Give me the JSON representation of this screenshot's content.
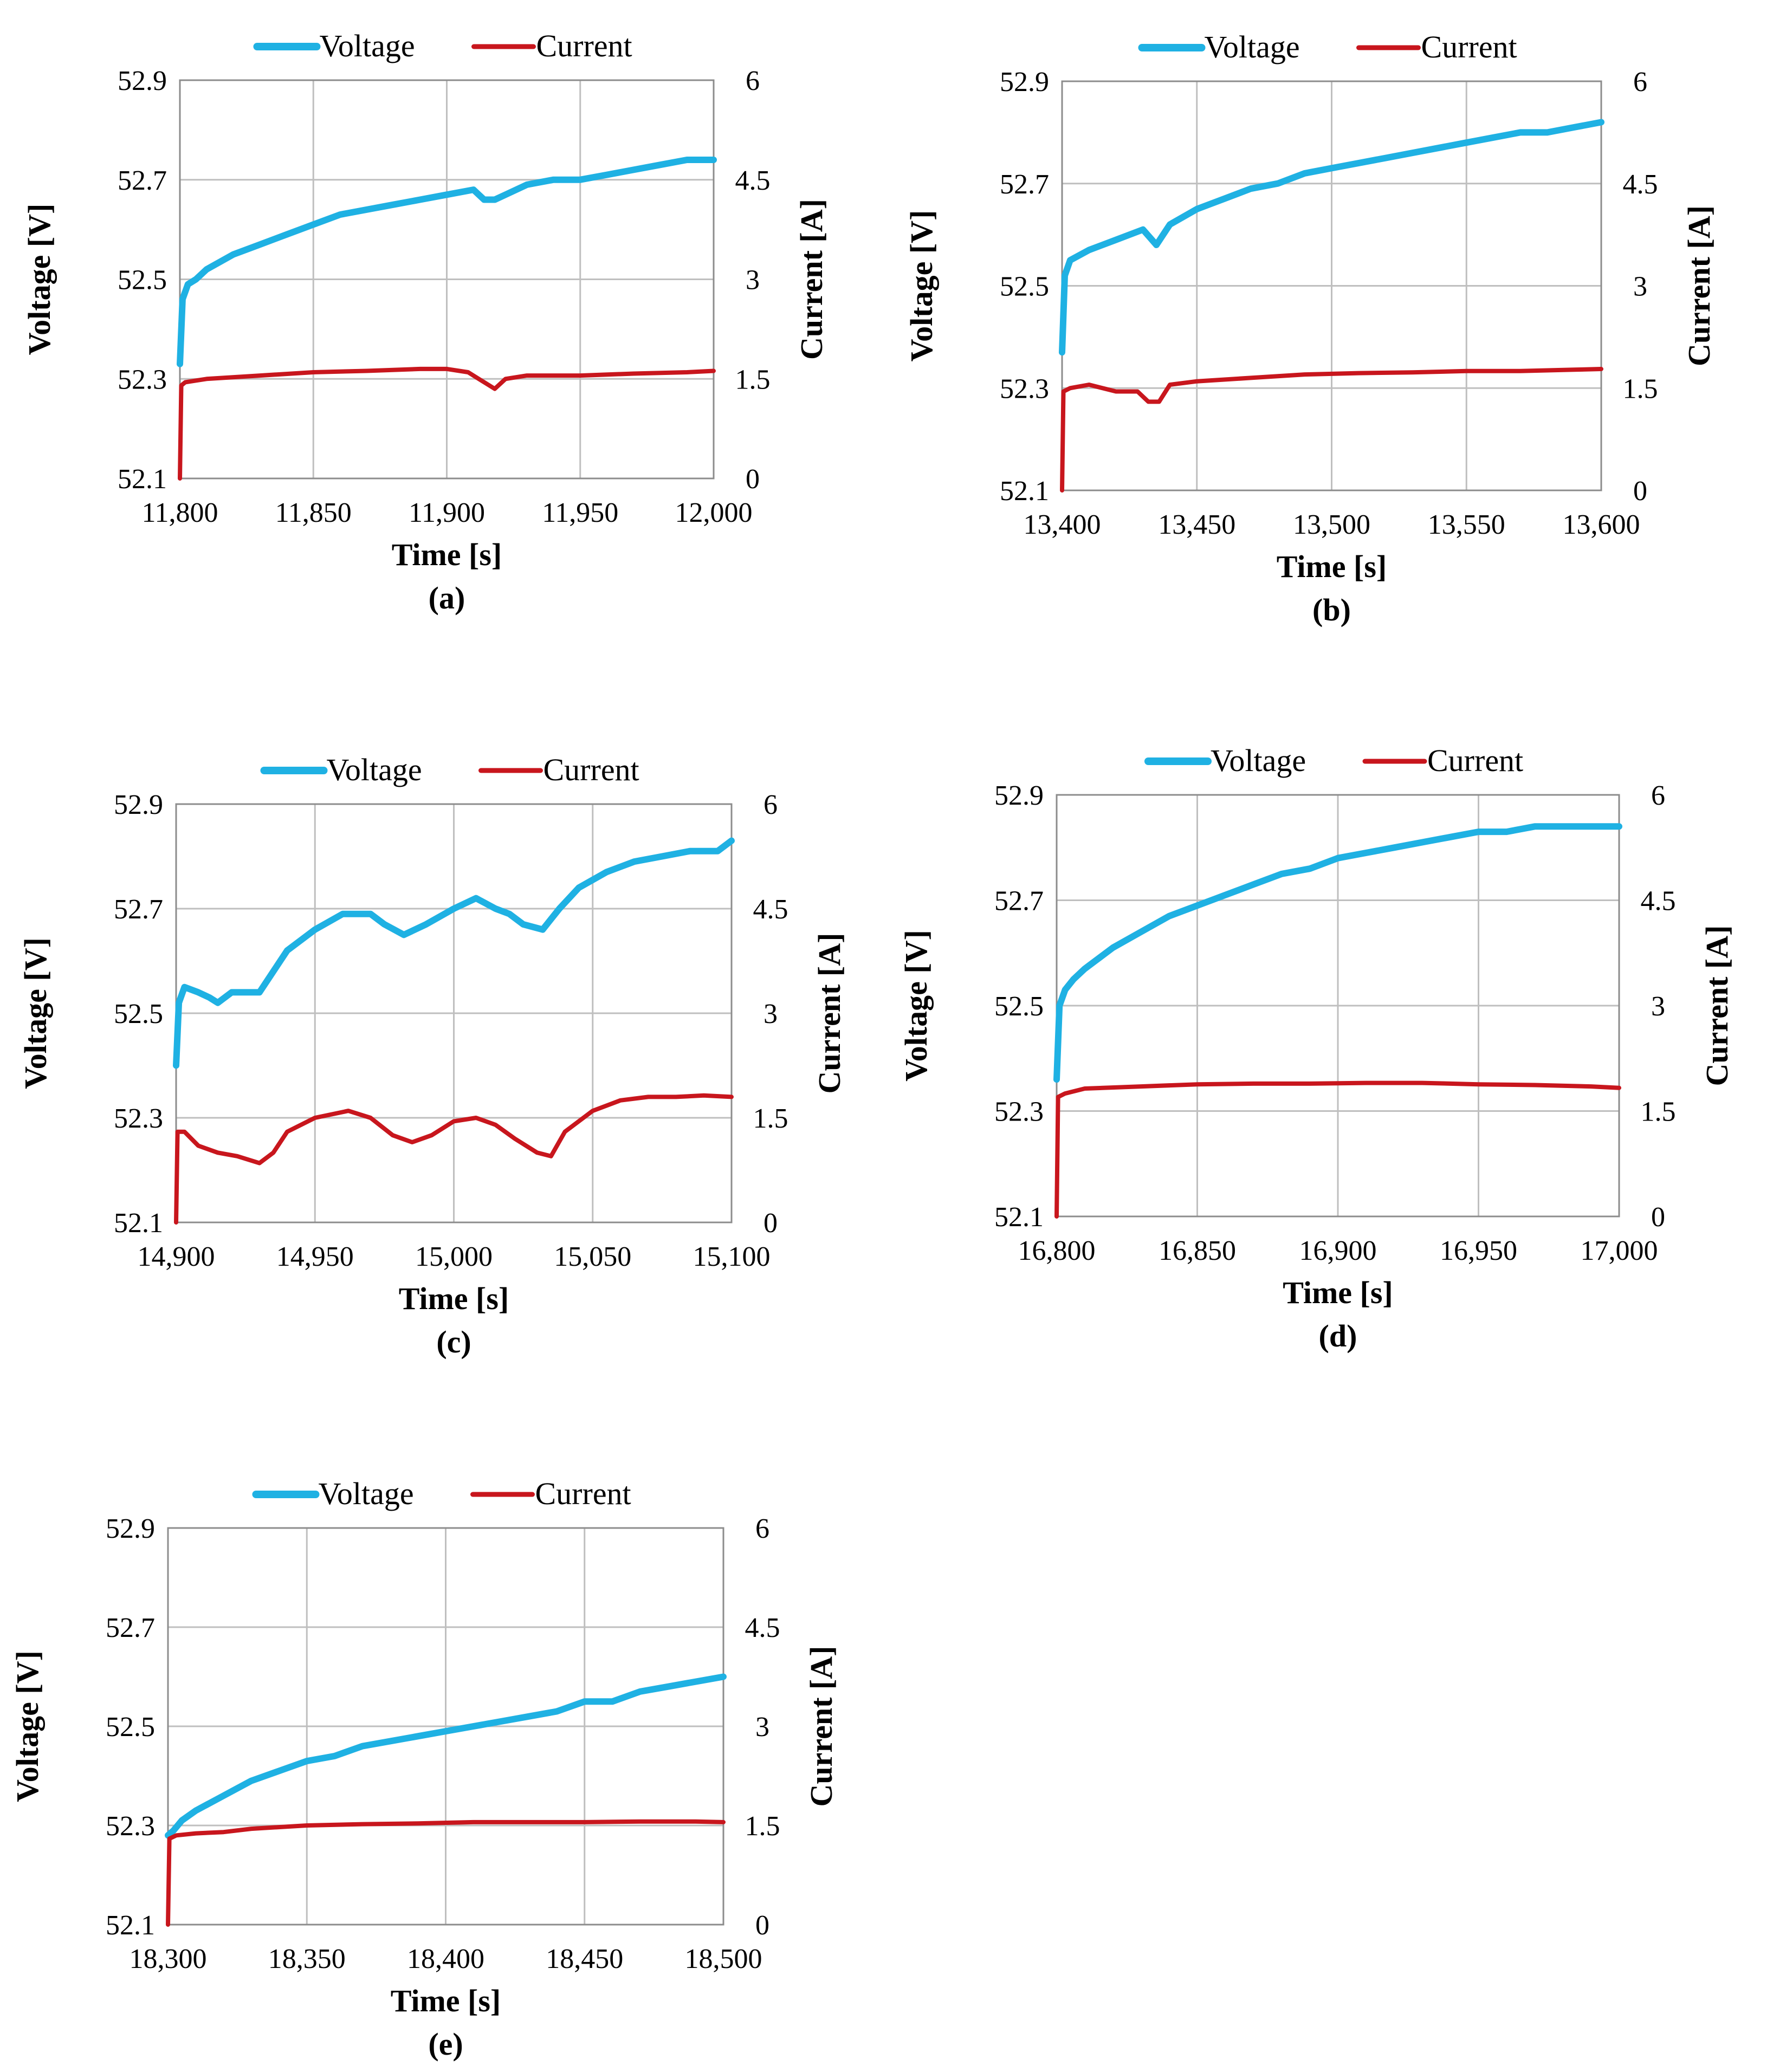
{
  "colors": {
    "voltage": "#1fb1e3",
    "current": "#c8161d",
    "grid": "#bfbfbf",
    "frame": "#8c8c8c"
  },
  "chart_data": [
    {
      "panel": "(a)",
      "type": "line",
      "xlabel": "Time [s]",
      "ylabel": "Voltage [V]",
      "y2label": "Current [A]",
      "xlim": [
        11800,
        12000
      ],
      "ylim": [
        52.1,
        52.9
      ],
      "y2lim": [
        0,
        6
      ],
      "xticks": [
        "11,800",
        "11,850",
        "11,900",
        "11,950",
        "12,000"
      ],
      "yticks": [
        "52.1",
        "52.3",
        "52.5",
        "52.7",
        "52.9"
      ],
      "y2ticks": [
        "0",
        "1.5",
        "3",
        "4.5",
        "6"
      ],
      "series": [
        {
          "name": "Voltage",
          "axis": "left",
          "x": [
            11800,
            11801,
            11803,
            11806,
            11810,
            11820,
            11830,
            11840,
            11850,
            11860,
            11870,
            11880,
            11890,
            11900,
            11910,
            11914,
            11918,
            11922,
            11930,
            11940,
            11950,
            11960,
            11970,
            11980,
            11990,
            12000
          ],
          "y": [
            52.33,
            52.46,
            52.49,
            52.5,
            52.52,
            52.55,
            52.57,
            52.59,
            52.61,
            52.63,
            52.64,
            52.65,
            52.66,
            52.67,
            52.68,
            52.66,
            52.66,
            52.67,
            52.69,
            52.7,
            52.7,
            52.71,
            52.72,
            52.73,
            52.74,
            52.74
          ]
        },
        {
          "name": "Current",
          "axis": "right",
          "x": [
            11800,
            11800.5,
            11802,
            11810,
            11830,
            11850,
            11870,
            11890,
            11900,
            11908,
            11914,
            11918,
            11922,
            11930,
            11950,
            11970,
            11990,
            12000
          ],
          "y": [
            0,
            1.4,
            1.45,
            1.5,
            1.55,
            1.6,
            1.62,
            1.65,
            1.65,
            1.6,
            1.45,
            1.35,
            1.5,
            1.55,
            1.55,
            1.58,
            1.6,
            1.62
          ]
        }
      ]
    },
    {
      "panel": "(b)",
      "type": "line",
      "xlabel": "Time [s]",
      "ylabel": "Voltage [V]",
      "y2label": "Current [A]",
      "xlim": [
        13400,
        13600
      ],
      "ylim": [
        52.1,
        52.9
      ],
      "y2lim": [
        0,
        6
      ],
      "xticks": [
        "13,400",
        "13,450",
        "13,500",
        "13,550",
        "13,600"
      ],
      "yticks": [
        "52.1",
        "52.3",
        "52.5",
        "52.7",
        "52.9"
      ],
      "y2ticks": [
        "0",
        "1.5",
        "3",
        "4.5",
        "6"
      ],
      "series": [
        {
          "name": "Voltage",
          "axis": "left",
          "x": [
            13400,
            13401,
            13403,
            13410,
            13420,
            13430,
            13435,
            13440,
            13450,
            13460,
            13470,
            13480,
            13490,
            13500,
            13510,
            13520,
            13530,
            13540,
            13550,
            13560,
            13570,
            13580,
            13590,
            13600
          ],
          "y": [
            52.37,
            52.52,
            52.55,
            52.57,
            52.59,
            52.61,
            52.58,
            52.62,
            52.65,
            52.67,
            52.69,
            52.7,
            52.72,
            52.73,
            52.74,
            52.75,
            52.76,
            52.77,
            52.78,
            52.79,
            52.8,
            52.8,
            52.81,
            52.82
          ]
        },
        {
          "name": "Current",
          "axis": "right",
          "x": [
            13400,
            13400.5,
            13403,
            13410,
            13420,
            13428,
            13432,
            13436,
            13440,
            13450,
            13470,
            13490,
            13510,
            13530,
            13550,
            13570,
            13590,
            13600
          ],
          "y": [
            0,
            1.45,
            1.5,
            1.55,
            1.45,
            1.45,
            1.3,
            1.3,
            1.55,
            1.6,
            1.65,
            1.7,
            1.72,
            1.73,
            1.75,
            1.75,
            1.77,
            1.78
          ]
        }
      ]
    },
    {
      "panel": "(c)",
      "type": "line",
      "xlabel": "Time [s]",
      "ylabel": "Voltage [V]",
      "y2label": "Current [A]",
      "xlim": [
        14900,
        15100
      ],
      "ylim": [
        52.1,
        52.9
      ],
      "y2lim": [
        0,
        6
      ],
      "xticks": [
        "14,900",
        "14,950",
        "15,000",
        "15,050",
        "15,100"
      ],
      "yticks": [
        "52.1",
        "52.3",
        "52.5",
        "52.7",
        "52.9"
      ],
      "y2ticks": [
        "0",
        "1.5",
        "3",
        "4.5",
        "6"
      ],
      "series": [
        {
          "name": "Voltage",
          "axis": "left",
          "x": [
            14900,
            14901,
            14903,
            14908,
            14912,
            14915,
            14920,
            14925,
            14930,
            14935,
            14940,
            14950,
            14960,
            14965,
            14970,
            14975,
            14982,
            14990,
            15000,
            15008,
            15015,
            15020,
            15025,
            15032,
            15038,
            15045,
            15055,
            15065,
            15075,
            15085,
            15095,
            15100
          ],
          "y": [
            52.4,
            52.52,
            52.55,
            52.54,
            52.53,
            52.52,
            52.54,
            52.54,
            52.54,
            52.58,
            52.62,
            52.66,
            52.69,
            52.69,
            52.69,
            52.67,
            52.65,
            52.67,
            52.7,
            52.72,
            52.7,
            52.69,
            52.67,
            52.66,
            52.7,
            52.74,
            52.77,
            52.79,
            52.8,
            52.81,
            52.81,
            52.83
          ]
        },
        {
          "name": "Current",
          "axis": "right",
          "x": [
            14900,
            14900.5,
            14903,
            14908,
            14915,
            14922,
            14930,
            14935,
            14940,
            14950,
            14962,
            14970,
            14978,
            14985,
            14992,
            15000,
            15008,
            15015,
            15022,
            15030,
            15035,
            15040,
            15050,
            15060,
            15070,
            15080,
            15090,
            15100
          ],
          "y": [
            0,
            1.3,
            1.3,
            1.1,
            1.0,
            0.95,
            0.85,
            1.0,
            1.3,
            1.5,
            1.6,
            1.5,
            1.25,
            1.15,
            1.25,
            1.45,
            1.5,
            1.4,
            1.2,
            1.0,
            0.95,
            1.3,
            1.6,
            1.75,
            1.8,
            1.8,
            1.82,
            1.8
          ]
        }
      ]
    },
    {
      "panel": "(d)",
      "type": "line",
      "xlabel": "Time [s]",
      "ylabel": "Voltage [V]",
      "y2label": "Current [A]",
      "xlim": [
        16800,
        17000
      ],
      "ylim": [
        52.1,
        52.9
      ],
      "y2lim": [
        0,
        6
      ],
      "xticks": [
        "16,800",
        "16,850",
        "16,900",
        "16,950",
        "17,000"
      ],
      "yticks": [
        "52.1",
        "52.3",
        "52.5",
        "52.7",
        "52.9"
      ],
      "y2ticks": [
        "0",
        "1.5",
        "3",
        "4.5",
        "6"
      ],
      "series": [
        {
          "name": "Voltage",
          "axis": "left",
          "x": [
            16800,
            16801,
            16803,
            16806,
            16810,
            16820,
            16830,
            16840,
            16850,
            16860,
            16870,
            16880,
            16890,
            16900,
            16910,
            16920,
            16930,
            16940,
            16950,
            16960,
            16970,
            16980,
            16990,
            17000
          ],
          "y": [
            52.36,
            52.5,
            52.53,
            52.55,
            52.57,
            52.61,
            52.64,
            52.67,
            52.69,
            52.71,
            52.73,
            52.75,
            52.76,
            52.78,
            52.79,
            52.8,
            52.81,
            52.82,
            52.83,
            52.83,
            52.84,
            52.84,
            52.84,
            52.84
          ]
        },
        {
          "name": "Current",
          "axis": "right",
          "x": [
            16800,
            16800.5,
            16803,
            16810,
            16830,
            16850,
            16870,
            16890,
            16910,
            16930,
            16950,
            16970,
            16990,
            17000
          ],
          "y": [
            0,
            1.7,
            1.75,
            1.82,
            1.85,
            1.88,
            1.89,
            1.89,
            1.9,
            1.9,
            1.88,
            1.87,
            1.85,
            1.83
          ]
        }
      ]
    },
    {
      "panel": "(e)",
      "type": "line",
      "xlabel": "Time [s]",
      "ylabel": "Voltage [V]",
      "y2label": "Current [A]",
      "xlim": [
        18300,
        18500
      ],
      "ylim": [
        52.1,
        52.9
      ],
      "y2lim": [
        0,
        6
      ],
      "xticks": [
        "18,300",
        "18,350",
        "18,400",
        "18,450",
        "18,500"
      ],
      "yticks": [
        "52.1",
        "52.3",
        "52.5",
        "52.7",
        "52.9"
      ],
      "y2ticks": [
        "0",
        "1.5",
        "3",
        "4.5",
        "6"
      ],
      "series": [
        {
          "name": "Voltage",
          "axis": "left",
          "x": [
            18300,
            18302,
            18305,
            18310,
            18320,
            18330,
            18340,
            18350,
            18360,
            18370,
            18380,
            18390,
            18400,
            18410,
            18420,
            18430,
            18440,
            18450,
            18460,
            18470,
            18480,
            18490,
            18500
          ],
          "y": [
            52.28,
            52.29,
            52.31,
            52.33,
            52.36,
            52.39,
            52.41,
            52.43,
            52.44,
            52.46,
            52.47,
            52.48,
            52.49,
            52.5,
            52.51,
            52.52,
            52.53,
            52.55,
            52.55,
            52.57,
            52.58,
            52.59,
            52.6
          ]
        },
        {
          "name": "Current",
          "axis": "right",
          "x": [
            18300,
            18300.5,
            18303,
            18310,
            18320,
            18330,
            18350,
            18370,
            18390,
            18410,
            18430,
            18450,
            18470,
            18490,
            18500
          ],
          "y": [
            0,
            1.3,
            1.35,
            1.38,
            1.4,
            1.45,
            1.5,
            1.52,
            1.53,
            1.55,
            1.55,
            1.55,
            1.56,
            1.56,
            1.55
          ]
        }
      ]
    }
  ]
}
